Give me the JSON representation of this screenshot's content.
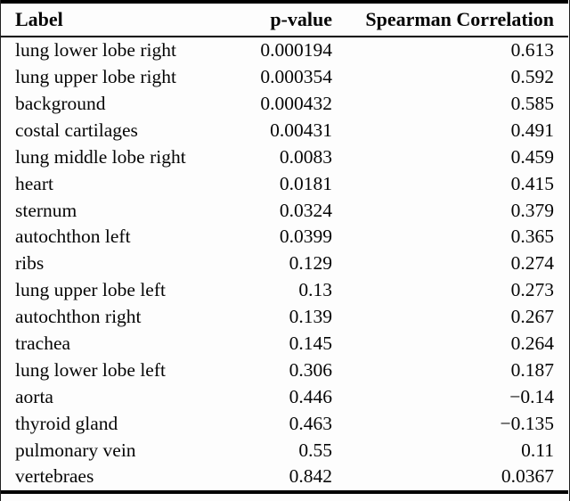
{
  "table": {
    "columns": [
      "Label",
      "p-value",
      "Spearman Correlation"
    ],
    "rows": [
      {
        "label": "lung lower lobe right",
        "p_value": "0.000194",
        "spearman": "0.613"
      },
      {
        "label": "lung upper lobe right",
        "p_value": "0.000354",
        "spearman": "0.592"
      },
      {
        "label": "background",
        "p_value": "0.000432",
        "spearman": "0.585"
      },
      {
        "label": "costal cartilages",
        "p_value": "0.00431",
        "spearman": "0.491"
      },
      {
        "label": "lung middle lobe right",
        "p_value": "0.0083",
        "spearman": "0.459"
      },
      {
        "label": "heart",
        "p_value": "0.0181",
        "spearman": "0.415"
      },
      {
        "label": "sternum",
        "p_value": "0.0324",
        "spearman": "0.379"
      },
      {
        "label": "autochthon left",
        "p_value": "0.0399",
        "spearman": "0.365"
      },
      {
        "label": "ribs",
        "p_value": "0.129",
        "spearman": "0.274"
      },
      {
        "label": "lung upper lobe left",
        "p_value": "0.13",
        "spearman": "0.273"
      },
      {
        "label": "autochthon right",
        "p_value": "0.139",
        "spearman": "0.267"
      },
      {
        "label": "trachea",
        "p_value": "0.145",
        "spearman": "0.264"
      },
      {
        "label": "lung lower lobe left",
        "p_value": "0.306",
        "spearman": "0.187"
      },
      {
        "label": "aorta",
        "p_value": "0.446",
        "spearman": "−0.14"
      },
      {
        "label": "thyroid gland",
        "p_value": "0.463",
        "spearman": "−0.135"
      },
      {
        "label": "pulmonary vein",
        "p_value": "0.55",
        "spearman": "0.11"
      },
      {
        "label": "vertebraes",
        "p_value": "0.842",
        "spearman": "0.0367"
      }
    ]
  },
  "colors": {
    "text": "#060606",
    "rule": "#000000",
    "background": "#fdfdfd"
  }
}
